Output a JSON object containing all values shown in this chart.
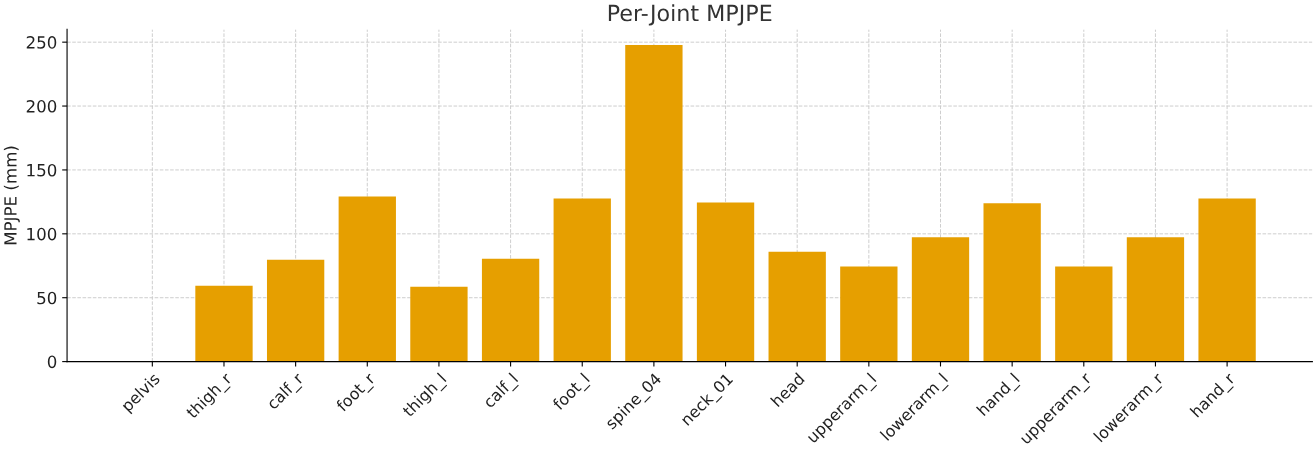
{
  "chart_data": {
    "type": "bar",
    "title": "Per-Joint MPJPE",
    "ylabel": "MPJPE (mm)",
    "categories": [
      "pelvis",
      "thigh_r",
      "calf_r",
      "foot_r",
      "thigh_l",
      "calf_l",
      "foot_l",
      "spine_04",
      "neck_01",
      "head",
      "upperarm_l",
      "lowerarm_l",
      "hand_l",
      "upperarm_r",
      "lowerarm_r",
      "hand_r"
    ],
    "values": [
      0,
      59.3,
      79.8,
      129.2,
      58.5,
      80.5,
      127.7,
      247.7,
      124.6,
      85.9,
      74.5,
      97.3,
      123.9,
      74.5,
      97.3,
      127.7
    ],
    "color": "#e69f00",
    "ylim": [
      0,
      260
    ],
    "yticks": [
      0,
      50,
      100,
      150,
      200,
      250
    ],
    "grid": true,
    "legend": false
  }
}
